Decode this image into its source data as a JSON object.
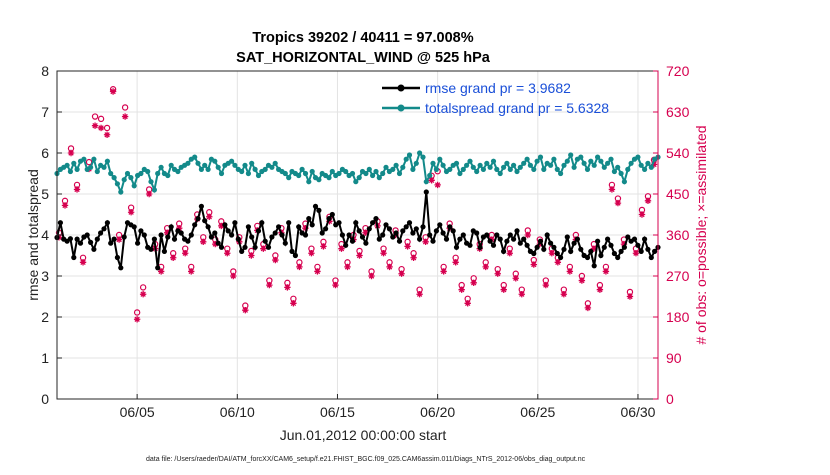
{
  "chart_data": {
    "type": "line",
    "title_line1": "Tropics 39202 / 40411 = 97.008%",
    "title_line2": "SAT_HORIZONTAL_WIND @ 525 hPa",
    "xlabel": "Jun.01,2012 00:00:00 start",
    "ylabel_left": "rmse and totalspread",
    "ylabel_right": "# of obs: o=possible; ×=assimilated",
    "footnote": "data file: /Users/raeder/DAI/ATM_forcXX/CAM6_setup/f.e21.FHIST_BGC.f09_025.CAM6assim.011/Diags_NTrS_2012-06/obs_diag_output.nc",
    "x_range_days": [
      1,
      31
    ],
    "x_ticks": [
      {
        "day": 5,
        "label": "06/05"
      },
      {
        "day": 10,
        "label": "06/10"
      },
      {
        "day": 15,
        "label": "06/15"
      },
      {
        "day": 20,
        "label": "06/20"
      },
      {
        "day": 25,
        "label": "06/25"
      },
      {
        "day": 30,
        "label": "06/30"
      }
    ],
    "ylim_left": [
      0,
      8
    ],
    "y_ticks_left": [
      "0",
      "1",
      "2",
      "3",
      "4",
      "5",
      "6",
      "7",
      "8"
    ],
    "ylim_right": [
      0,
      720
    ],
    "y_ticks_right": [
      "0",
      "90",
      "180",
      "270",
      "360",
      "450",
      "540",
      "630",
      "720"
    ],
    "series": [
      {
        "name": "rmse",
        "legend": "rmse grand pr = 3.9682",
        "color": "#000000",
        "values": [
          3.94,
          4.3,
          3.9,
          3.85,
          3.91,
          3.45,
          3.9,
          3.8,
          3.95,
          4.0,
          3.82,
          3.65,
          3.9,
          4.05,
          4.15,
          4.3,
          3.8,
          3.9,
          3.45,
          3.2,
          3.95,
          4.3,
          4.25,
          4.2,
          3.8,
          4.1,
          4.0,
          3.7,
          3.65,
          3.9,
          3.2,
          4.0,
          3.6,
          3.95,
          4.2,
          3.9,
          4.1,
          4.05,
          3.9,
          3.85,
          4.0,
          4.25,
          4.4,
          4.7,
          4.35,
          4.2,
          3.95,
          4.05,
          3.8,
          3.7,
          4.25,
          4.1,
          4.0,
          4.3,
          3.9,
          3.6,
          3.7,
          4.2,
          3.95,
          3.7,
          4.1,
          4.3,
          3.85,
          3.7,
          3.95,
          4.05,
          4.2,
          4.0,
          3.8,
          4.3,
          3.6,
          3.5,
          4.2,
          4.05,
          4.0,
          4.4,
          4.25,
          4.7,
          4.6,
          4.05,
          4.15,
          4.4,
          4.5,
          4.25,
          4.3,
          4.0,
          3.75,
          4.0,
          3.85,
          4.3,
          4.1,
          3.95,
          3.8,
          4.15,
          4.3,
          4.4,
          3.9,
          4.0,
          4.25,
          4.15,
          3.95,
          4.05,
          3.85,
          4.1,
          4.2,
          4.3,
          4.05,
          4.15,
          3.9,
          4.2,
          5.05,
          4.0,
          3.85,
          4.1,
          4.25,
          4.05,
          3.9,
          4.2,
          4.1,
          3.7,
          3.9,
          4.0,
          3.8,
          3.75,
          4.1,
          4.05,
          3.7,
          3.95,
          4.0,
          3.85,
          3.75,
          4.0,
          3.9,
          3.6,
          3.85,
          4.0,
          3.9,
          4.1,
          3.8,
          3.9,
          3.75,
          3.6,
          3.55,
          3.7,
          3.85,
          3.65,
          4.0,
          3.8,
          3.7,
          3.55,
          3.45,
          3.65,
          3.95,
          3.6,
          3.8,
          3.9,
          3.65,
          3.5,
          3.45,
          3.6,
          3.25,
          3.85,
          3.5,
          3.7,
          3.9,
          3.75,
          3.55,
          3.45,
          3.6,
          3.7,
          3.95,
          3.85,
          3.9,
          3.75,
          3.6,
          3.9,
          3.65,
          3.45,
          3.6,
          3.7
        ]
      },
      {
        "name": "totalspread",
        "legend": "totalspread grand pr = 5.6328",
        "color": "#138a8a",
        "values": [
          5.5,
          5.6,
          5.65,
          5.7,
          5.55,
          5.75,
          5.6,
          5.8,
          5.85,
          5.6,
          5.65,
          5.85,
          5.55,
          5.7,
          5.65,
          5.8,
          5.5,
          5.4,
          5.25,
          5.05,
          5.35,
          5.5,
          5.4,
          5.2,
          5.45,
          5.5,
          5.6,
          5.55,
          5.3,
          5.1,
          5.5,
          5.65,
          5.5,
          5.45,
          5.7,
          5.6,
          5.55,
          5.65,
          5.7,
          5.75,
          5.85,
          5.9,
          5.75,
          5.6,
          5.7,
          5.6,
          5.85,
          5.8,
          5.65,
          5.5,
          5.7,
          5.75,
          5.8,
          5.7,
          5.6,
          5.55,
          5.7,
          5.5,
          5.75,
          5.6,
          5.45,
          5.55,
          5.6,
          5.7,
          5.65,
          5.75,
          5.6,
          5.55,
          5.5,
          5.4,
          5.55,
          5.5,
          5.45,
          5.6,
          5.5,
          5.3,
          5.55,
          5.4,
          5.35,
          5.5,
          5.45,
          5.4,
          5.55,
          5.45,
          5.5,
          5.6,
          5.55,
          5.45,
          5.5,
          5.3,
          5.4,
          5.55,
          5.5,
          5.6,
          5.45,
          5.55,
          5.4,
          5.5,
          5.65,
          5.55,
          5.6,
          5.7,
          5.5,
          5.65,
          5.85,
          5.95,
          5.6,
          5.75,
          6.0,
          5.9,
          5.3,
          5.45,
          5.75,
          5.6,
          5.85,
          5.7,
          5.55,
          5.6,
          5.7,
          5.75,
          5.5,
          5.6,
          5.7,
          5.8,
          5.65,
          5.55,
          5.7,
          5.6,
          5.75,
          5.65,
          5.8,
          5.6,
          5.5,
          5.65,
          5.75,
          5.6,
          5.7,
          5.55,
          5.65,
          5.75,
          5.85,
          5.7,
          5.6,
          5.8,
          5.9,
          5.6,
          5.75,
          5.7,
          5.85,
          5.6,
          5.5,
          5.7,
          5.8,
          5.95,
          5.65,
          5.85,
          5.9,
          5.75,
          5.6,
          5.8,
          5.7,
          5.9,
          5.8,
          5.65,
          5.75,
          5.85,
          5.55,
          5.65,
          5.5,
          5.3,
          5.6,
          5.75,
          5.85,
          5.9,
          5.7,
          5.6,
          5.75,
          5.65,
          5.85,
          5.9
        ]
      }
    ],
    "obs_possible": [
      {
        "day": 1.1,
        "n": 365
      },
      {
        "day": 1.4,
        "n": 435
      },
      {
        "day": 1.7,
        "n": 550
      },
      {
        "day": 2.0,
        "n": 470
      },
      {
        "day": 2.3,
        "n": 310
      },
      {
        "day": 2.6,
        "n": 520
      },
      {
        "day": 2.9,
        "n": 620
      },
      {
        "day": 3.2,
        "n": 615
      },
      {
        "day": 3.5,
        "n": 595
      },
      {
        "day": 3.8,
        "n": 680
      },
      {
        "day": 4.1,
        "n": 360
      },
      {
        "day": 4.4,
        "n": 640
      },
      {
        "day": 4.7,
        "n": 420
      },
      {
        "day": 5.0,
        "n": 190
      },
      {
        "day": 5.3,
        "n": 245
      },
      {
        "day": 5.6,
        "n": 460
      },
      {
        "day": 5.9,
        "n": 340
      },
      {
        "day": 6.2,
        "n": 290
      },
      {
        "day": 6.5,
        "n": 375
      },
      {
        "day": 6.8,
        "n": 320
      },
      {
        "day": 7.1,
        "n": 385
      },
      {
        "day": 7.4,
        "n": 330
      },
      {
        "day": 7.7,
        "n": 290
      },
      {
        "day": 8.0,
        "n": 405
      },
      {
        "day": 8.3,
        "n": 355
      },
      {
        "day": 8.6,
        "n": 410
      },
      {
        "day": 8.9,
        "n": 350
      },
      {
        "day": 9.2,
        "n": 390
      },
      {
        "day": 9.5,
        "n": 330
      },
      {
        "day": 9.8,
        "n": 280
      },
      {
        "day": 10.1,
        "n": 355
      },
      {
        "day": 10.4,
        "n": 205
      },
      {
        "day": 10.7,
        "n": 325
      },
      {
        "day": 11.0,
        "n": 380
      },
      {
        "day": 11.3,
        "n": 340
      },
      {
        "day": 11.6,
        "n": 260
      },
      {
        "day": 11.9,
        "n": 315
      },
      {
        "day": 12.2,
        "n": 375
      },
      {
        "day": 12.5,
        "n": 255
      },
      {
        "day": 12.8,
        "n": 220
      },
      {
        "day": 13.1,
        "n": 300
      },
      {
        "day": 13.4,
        "n": 385
      },
      {
        "day": 13.7,
        "n": 330
      },
      {
        "day": 14.0,
        "n": 290
      },
      {
        "day": 14.3,
        "n": 345
      },
      {
        "day": 14.6,
        "n": 400
      },
      {
        "day": 14.9,
        "n": 260
      },
      {
        "day": 15.2,
        "n": 340
      },
      {
        "day": 15.5,
        "n": 300
      },
      {
        "day": 15.8,
        "n": 360
      },
      {
        "day": 16.1,
        "n": 325
      },
      {
        "day": 16.4,
        "n": 375
      },
      {
        "day": 16.7,
        "n": 280
      },
      {
        "day": 17.0,
        "n": 390
      },
      {
        "day": 17.3,
        "n": 330
      },
      {
        "day": 17.6,
        "n": 300
      },
      {
        "day": 17.9,
        "n": 370
      },
      {
        "day": 18.2,
        "n": 285
      },
      {
        "day": 18.5,
        "n": 345
      },
      {
        "day": 18.8,
        "n": 320
      },
      {
        "day": 19.1,
        "n": 240
      },
      {
        "day": 19.4,
        "n": 355
      },
      {
        "day": 19.7,
        "n": 490
      },
      {
        "day": 20.0,
        "n": 500
      },
      {
        "day": 20.3,
        "n": 290
      },
      {
        "day": 20.6,
        "n": 385
      },
      {
        "day": 20.9,
        "n": 310
      },
      {
        "day": 21.2,
        "n": 250
      },
      {
        "day": 21.5,
        "n": 220
      },
      {
        "day": 21.8,
        "n": 265
      },
      {
        "day": 22.1,
        "n": 340
      },
      {
        "day": 22.4,
        "n": 300
      },
      {
        "day": 22.7,
        "n": 360
      },
      {
        "day": 23.0,
        "n": 285
      },
      {
        "day": 23.3,
        "n": 250
      },
      {
        "day": 23.6,
        "n": 330
      },
      {
        "day": 23.9,
        "n": 275
      },
      {
        "day": 24.2,
        "n": 240
      },
      {
        "day": 24.5,
        "n": 370
      },
      {
        "day": 24.8,
        "n": 305
      },
      {
        "day": 25.1,
        "n": 350
      },
      {
        "day": 25.4,
        "n": 260
      },
      {
        "day": 25.7,
        "n": 330
      },
      {
        "day": 26.0,
        "n": 310
      },
      {
        "day": 26.3,
        "n": 240
      },
      {
        "day": 26.6,
        "n": 290
      },
      {
        "day": 26.9,
        "n": 360
      },
      {
        "day": 27.2,
        "n": 270
      },
      {
        "day": 27.5,
        "n": 210
      },
      {
        "day": 27.8,
        "n": 340
      },
      {
        "day": 28.1,
        "n": 250
      },
      {
        "day": 28.4,
        "n": 290
      },
      {
        "day": 28.7,
        "n": 470
      },
      {
        "day": 29.0,
        "n": 440
      },
      {
        "day": 29.3,
        "n": 350
      },
      {
        "day": 29.6,
        "n": 235
      },
      {
        "day": 29.9,
        "n": 330
      },
      {
        "day": 30.2,
        "n": 415
      },
      {
        "day": 30.5,
        "n": 445
      },
      {
        "day": 30.8,
        "n": 525
      }
    ],
    "obs_assimilated": [
      {
        "day": 1.1,
        "n": 355
      },
      {
        "day": 1.4,
        "n": 425
      },
      {
        "day": 1.7,
        "n": 540
      },
      {
        "day": 2.0,
        "n": 460
      },
      {
        "day": 2.3,
        "n": 300
      },
      {
        "day": 2.6,
        "n": 505
      },
      {
        "day": 2.9,
        "n": 600
      },
      {
        "day": 3.2,
        "n": 595
      },
      {
        "day": 3.5,
        "n": 580
      },
      {
        "day": 3.8,
        "n": 675
      },
      {
        "day": 4.1,
        "n": 350
      },
      {
        "day": 4.4,
        "n": 620
      },
      {
        "day": 4.7,
        "n": 410
      },
      {
        "day": 5.0,
        "n": 175
      },
      {
        "day": 5.3,
        "n": 230
      },
      {
        "day": 5.6,
        "n": 450
      },
      {
        "day": 5.9,
        "n": 330
      },
      {
        "day": 6.2,
        "n": 280
      },
      {
        "day": 6.5,
        "n": 365
      },
      {
        "day": 6.8,
        "n": 310
      },
      {
        "day": 7.1,
        "n": 375
      },
      {
        "day": 7.4,
        "n": 320
      },
      {
        "day": 7.7,
        "n": 280
      },
      {
        "day": 8.0,
        "n": 395
      },
      {
        "day": 8.3,
        "n": 345
      },
      {
        "day": 8.6,
        "n": 400
      },
      {
        "day": 8.9,
        "n": 340
      },
      {
        "day": 9.2,
        "n": 380
      },
      {
        "day": 9.5,
        "n": 320
      },
      {
        "day": 9.8,
        "n": 270
      },
      {
        "day": 10.1,
        "n": 345
      },
      {
        "day": 10.4,
        "n": 195
      },
      {
        "day": 10.7,
        "n": 315
      },
      {
        "day": 11.0,
        "n": 370
      },
      {
        "day": 11.3,
        "n": 330
      },
      {
        "day": 11.6,
        "n": 250
      },
      {
        "day": 11.9,
        "n": 305
      },
      {
        "day": 12.2,
        "n": 365
      },
      {
        "day": 12.5,
        "n": 245
      },
      {
        "day": 12.8,
        "n": 210
      },
      {
        "day": 13.1,
        "n": 290
      },
      {
        "day": 13.4,
        "n": 375
      },
      {
        "day": 13.7,
        "n": 320
      },
      {
        "day": 14.0,
        "n": 280
      },
      {
        "day": 14.3,
        "n": 335
      },
      {
        "day": 14.6,
        "n": 390
      },
      {
        "day": 14.9,
        "n": 250
      },
      {
        "day": 15.2,
        "n": 330
      },
      {
        "day": 15.5,
        "n": 290
      },
      {
        "day": 15.8,
        "n": 350
      },
      {
        "day": 16.1,
        "n": 315
      },
      {
        "day": 16.4,
        "n": 365
      },
      {
        "day": 16.7,
        "n": 270
      },
      {
        "day": 17.0,
        "n": 380
      },
      {
        "day": 17.3,
        "n": 320
      },
      {
        "day": 17.6,
        "n": 290
      },
      {
        "day": 17.9,
        "n": 360
      },
      {
        "day": 18.2,
        "n": 275
      },
      {
        "day": 18.5,
        "n": 335
      },
      {
        "day": 18.8,
        "n": 310
      },
      {
        "day": 19.1,
        "n": 230
      },
      {
        "day": 19.4,
        "n": 345
      },
      {
        "day": 19.7,
        "n": 480
      },
      {
        "day": 20.0,
        "n": 470
      },
      {
        "day": 20.3,
        "n": 280
      },
      {
        "day": 20.6,
        "n": 375
      },
      {
        "day": 20.9,
        "n": 300
      },
      {
        "day": 21.2,
        "n": 240
      },
      {
        "day": 21.5,
        "n": 210
      },
      {
        "day": 21.8,
        "n": 255
      },
      {
        "day": 22.1,
        "n": 330
      },
      {
        "day": 22.4,
        "n": 290
      },
      {
        "day": 22.7,
        "n": 350
      },
      {
        "day": 23.0,
        "n": 275
      },
      {
        "day": 23.3,
        "n": 240
      },
      {
        "day": 23.6,
        "n": 320
      },
      {
        "day": 23.9,
        "n": 265
      },
      {
        "day": 24.2,
        "n": 230
      },
      {
        "day": 24.5,
        "n": 360
      },
      {
        "day": 24.8,
        "n": 295
      },
      {
        "day": 25.1,
        "n": 340
      },
      {
        "day": 25.4,
        "n": 250
      },
      {
        "day": 25.7,
        "n": 320
      },
      {
        "day": 26.0,
        "n": 300
      },
      {
        "day": 26.3,
        "n": 230
      },
      {
        "day": 26.6,
        "n": 280
      },
      {
        "day": 26.9,
        "n": 350
      },
      {
        "day": 27.2,
        "n": 260
      },
      {
        "day": 27.5,
        "n": 200
      },
      {
        "day": 27.8,
        "n": 330
      },
      {
        "day": 28.1,
        "n": 240
      },
      {
        "day": 28.4,
        "n": 280
      },
      {
        "day": 28.7,
        "n": 460
      },
      {
        "day": 29.0,
        "n": 430
      },
      {
        "day": 29.3,
        "n": 340
      },
      {
        "day": 29.6,
        "n": 225
      },
      {
        "day": 29.9,
        "n": 320
      },
      {
        "day": 30.2,
        "n": 405
      },
      {
        "day": 30.5,
        "n": 435
      },
      {
        "day": 30.8,
        "n": 515
      }
    ],
    "colors": {
      "rmse": "#000000",
      "spread": "#138a8a",
      "obs": "#d6004f",
      "legend_text": "#1a4fd8",
      "axis": "#262626",
      "grid": "#e3e3e3"
    }
  }
}
